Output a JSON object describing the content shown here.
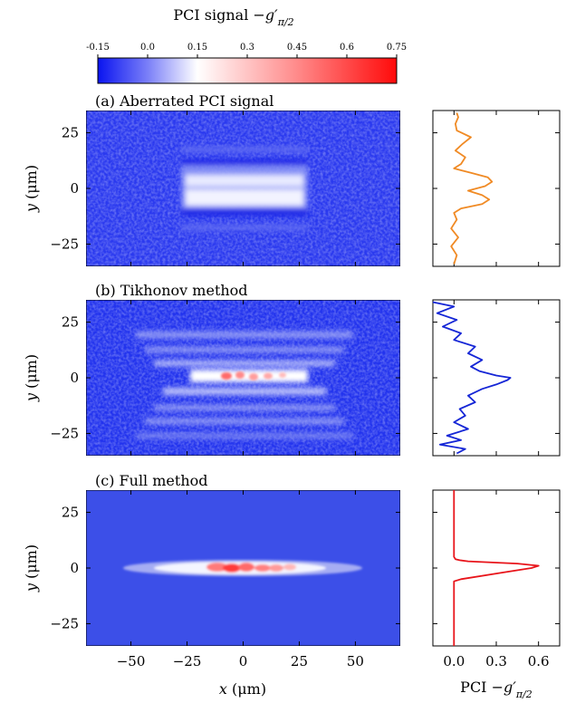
{
  "colorbar": {
    "label_main": "PCI signal ",
    "label_sym": "−g′",
    "label_sub": "π/2",
    "ticks": [
      "-0.15",
      "0.0",
      "0.15",
      "0.3",
      "0.45",
      "0.6",
      "0.75"
    ],
    "range": [
      -0.15,
      0.75
    ],
    "colors": {
      "low": "#0a14f0",
      "mid": "#ffffff",
      "high": "#ff0a0a"
    }
  },
  "axes": {
    "ylabel_main": "y",
    "ylabel_unit": " (μm)",
    "xlabel_main": "x",
    "xlabel_unit": " (μm)",
    "xticks": [
      "−50",
      "−25",
      "0",
      "25",
      "50"
    ],
    "yticks": [
      "25",
      "0",
      "−25"
    ],
    "profile_xticks": [
      "0.0",
      "0.3",
      "0.6"
    ],
    "profile_xlabel_main": "PCI ",
    "profile_xlabel_sym": "−g′",
    "profile_xlabel_sub": "π/2"
  },
  "chart_data": [
    {
      "type": "heatmap",
      "title": "(a) Aberrated PCI signal",
      "x_range": [
        -70,
        70
      ],
      "y_range": [
        -35,
        35
      ],
      "x_ticks": [
        -50,
        -25,
        0,
        25,
        50
      ],
      "y_ticks": [
        -25,
        0,
        25
      ],
      "color_range": [
        -0.15,
        0.75
      ],
      "profile": {
        "type": "line",
        "color": "#f08a24",
        "xlim": [
          -0.15,
          0.75
        ],
        "y": [
          -34,
          -30,
          -26,
          -22,
          -18,
          -14,
          -11,
          -9,
          -7,
          -5,
          -3,
          -1,
          1,
          3,
          5,
          7,
          9,
          11,
          14,
          17,
          20,
          23,
          26,
          29,
          32,
          34
        ],
        "values": [
          0.0,
          0.02,
          -0.02,
          0.03,
          -0.02,
          0.02,
          0.0,
          0.05,
          0.2,
          0.25,
          0.2,
          0.1,
          0.22,
          0.27,
          0.24,
          0.12,
          0.0,
          0.05,
          0.08,
          0.01,
          0.06,
          0.12,
          0.02,
          0.01,
          0.03,
          0.02
        ]
      }
    },
    {
      "type": "heatmap",
      "title": "(b) Tikhonov method",
      "x_range": [
        -70,
        70
      ],
      "y_range": [
        -35,
        35
      ],
      "x_ticks": [
        -50,
        -25,
        0,
        25,
        50
      ],
      "y_ticks": [
        -25,
        0,
        25
      ],
      "color_range": [
        -0.15,
        0.75
      ],
      "profile": {
        "type": "line",
        "color": "#1526d6",
        "xlim": [
          -0.15,
          0.75
        ],
        "y": [
          -34,
          -32,
          -30,
          -28,
          -26,
          -23,
          -20,
          -17,
          -14,
          -11,
          -8,
          -5,
          -3,
          -1,
          0,
          1,
          3,
          5,
          8,
          11,
          14,
          17,
          20,
          23,
          26,
          29,
          32,
          34
        ],
        "values": [
          0.02,
          0.08,
          -0.1,
          0.05,
          -0.05,
          0.1,
          0.0,
          0.08,
          0.04,
          0.15,
          0.1,
          0.2,
          0.3,
          0.38,
          0.4,
          0.3,
          0.18,
          0.12,
          0.2,
          0.1,
          0.15,
          0.0,
          0.05,
          -0.08,
          0.02,
          -0.12,
          0.0,
          -0.15
        ]
      }
    },
    {
      "type": "heatmap",
      "title": "(c) Full method",
      "x_range": [
        -70,
        70
      ],
      "y_range": [
        -35,
        35
      ],
      "x_ticks": [
        -50,
        -25,
        0,
        25,
        50
      ],
      "y_ticks": [
        -25,
        0,
        25
      ],
      "color_range": [
        -0.15,
        0.75
      ],
      "profile": {
        "type": "line",
        "color": "#e8141a",
        "xlim": [
          -0.15,
          0.75
        ],
        "y": [
          -35,
          -20,
          -6,
          -5,
          -2,
          0,
          1,
          2,
          3,
          3.5,
          4,
          5,
          20,
          35
        ],
        "values": [
          0.0,
          0.0,
          0.0,
          0.05,
          0.35,
          0.55,
          0.6,
          0.45,
          0.1,
          0.04,
          0.01,
          0.0,
          0.0,
          0.0
        ]
      }
    }
  ]
}
